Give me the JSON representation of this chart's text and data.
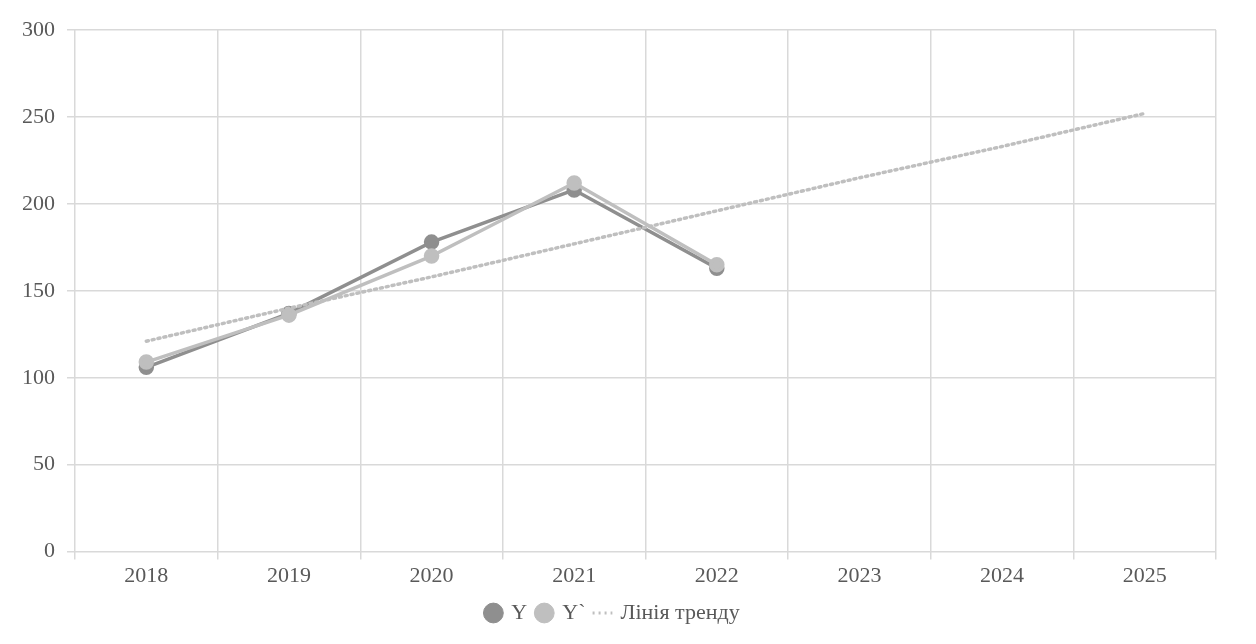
{
  "chart_data": {
    "type": "line",
    "categories": [
      "2018",
      "2019",
      "2020",
      "2021",
      "2022",
      "2023",
      "2024",
      "2025"
    ],
    "series": [
      {
        "name": "Y",
        "color": "#8f8f8f",
        "marker": "circle",
        "line_style": "solid",
        "values": [
          106,
          137,
          178,
          208,
          163,
          null,
          null,
          null
        ]
      },
      {
        "name": "Y`",
        "color": "#bfbfbf",
        "marker": "circle",
        "line_style": "solid",
        "values": [
          109,
          136,
          170,
          212,
          165,
          null,
          null,
          null
        ]
      },
      {
        "name": "Лінія тренду",
        "color": "#bfbfbf",
        "marker": "none",
        "line_style": "dotted",
        "values": [
          121,
          140,
          158,
          177,
          196,
          215,
          233,
          252
        ]
      }
    ],
    "ylim": [
      0,
      300
    ],
    "yticks": [
      0,
      50,
      100,
      150,
      200,
      250,
      300
    ],
    "grid": true,
    "legend": "bottom"
  }
}
